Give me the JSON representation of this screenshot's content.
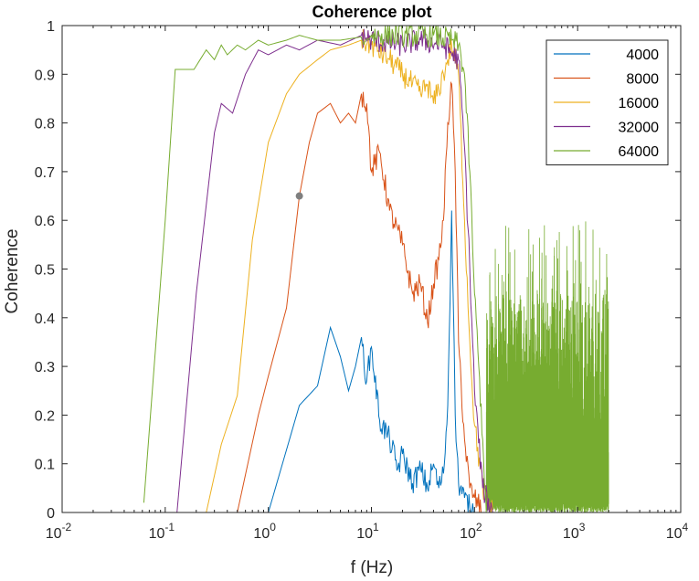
{
  "chart_data": {
    "type": "line",
    "title": "Coherence plot",
    "xlabel": "f (Hz)",
    "ylabel": "Coherence",
    "xscale": "log",
    "xlim": [
      0.01,
      10000
    ],
    "ylim": [
      0,
      1
    ],
    "grid": false,
    "legend_position": "top-right",
    "x_tick_labels": [
      {
        "base": "10",
        "exp": "-2"
      },
      {
        "base": "10",
        "exp": "-1"
      },
      {
        "base": "10",
        "exp": "0"
      },
      {
        "base": "10",
        "exp": "1"
      },
      {
        "base": "10",
        "exp": "2"
      },
      {
        "base": "10",
        "exp": "3"
      },
      {
        "base": "10",
        "exp": "4"
      }
    ],
    "y_tick_labels": [
      "0",
      "0.1",
      "0.2",
      "0.3",
      "0.4",
      "0.5",
      "0.6",
      "0.7",
      "0.8",
      "0.9",
      "1"
    ],
    "annotations": [
      {
        "x": 2.0,
        "y": 0.65,
        "marker": "dot",
        "color": "#7f7f7f"
      }
    ],
    "series": [
      {
        "name": "4000",
        "color": "#0072BD",
        "x": [
          1.0,
          2.0,
          3.0,
          4.0,
          5.0,
          6.0,
          7.0,
          8.0,
          9.0,
          10.0,
          12.0,
          15.0,
          18.0,
          20.0,
          25.0,
          30.0,
          35.0,
          40.0,
          45.0,
          50.0,
          55.0,
          60.0,
          62.0,
          65.0,
          70.0,
          80.0,
          90.0,
          100.0
        ],
        "y": [
          0.0,
          0.22,
          0.26,
          0.38,
          0.32,
          0.25,
          0.3,
          0.36,
          0.27,
          0.34,
          0.19,
          0.15,
          0.09,
          0.12,
          0.06,
          0.09,
          0.05,
          0.1,
          0.05,
          0.08,
          0.22,
          0.62,
          0.45,
          0.2,
          0.06,
          0.03,
          0.01,
          0.0
        ]
      },
      {
        "name": "8000",
        "color": "#D95319",
        "x": [
          0.5,
          0.8,
          1.0,
          1.5,
          2.0,
          2.5,
          3.0,
          4.0,
          5.0,
          6.0,
          7.0,
          8.0,
          9.0,
          10.0,
          12.0,
          15.0,
          20.0,
          25.0,
          30.0,
          35.0,
          40.0,
          45.0,
          50.0,
          55.0,
          60.0,
          65.0,
          70.0,
          80.0,
          90.0,
          100.0,
          120.0
        ],
        "y": [
          0.0,
          0.2,
          0.28,
          0.42,
          0.65,
          0.76,
          0.82,
          0.84,
          0.8,
          0.82,
          0.8,
          0.86,
          0.84,
          0.7,
          0.74,
          0.62,
          0.55,
          0.45,
          0.47,
          0.39,
          0.47,
          0.52,
          0.6,
          0.8,
          0.88,
          0.7,
          0.35,
          0.15,
          0.05,
          0.03,
          0.0
        ]
      },
      {
        "name": "16000",
        "color": "#EDB120",
        "x": [
          0.25,
          0.35,
          0.5,
          0.7,
          1.0,
          1.5,
          2.0,
          3.0,
          4.0,
          6.0,
          8.0,
          10.0,
          15.0,
          20.0,
          25.0,
          30.0,
          35.0,
          40.0,
          45.0,
          50.0,
          55.0,
          60.0,
          70.0,
          80.0,
          90.0,
          100.0,
          120.0,
          150.0
        ],
        "y": [
          0.0,
          0.14,
          0.24,
          0.56,
          0.76,
          0.86,
          0.9,
          0.93,
          0.95,
          0.96,
          0.97,
          0.96,
          0.93,
          0.9,
          0.88,
          0.86,
          0.88,
          0.84,
          0.87,
          0.9,
          0.93,
          0.96,
          0.9,
          0.6,
          0.35,
          0.18,
          0.05,
          0.0
        ]
      },
      {
        "name": "32000",
        "color": "#7E2F8E",
        "x": [
          0.13,
          0.2,
          0.3,
          0.35,
          0.45,
          0.6,
          0.8,
          1.0,
          1.5,
          2.0,
          3.0,
          5.0,
          8.0,
          10.0,
          20.0,
          30.0,
          50.0,
          70.0,
          80.0,
          90.0,
          100.0,
          120.0,
          150.0
        ],
        "y": [
          0.0,
          0.45,
          0.78,
          0.84,
          0.82,
          0.9,
          0.95,
          0.94,
          0.96,
          0.95,
          0.97,
          0.96,
          0.98,
          0.97,
          0.96,
          0.97,
          0.96,
          0.93,
          0.75,
          0.5,
          0.25,
          0.05,
          0.0
        ]
      },
      {
        "name": "64000",
        "color": "#77AC30",
        "x": [
          0.062,
          0.1,
          0.125,
          0.19,
          0.25,
          0.3,
          0.35,
          0.4,
          0.5,
          0.6,
          0.8,
          1.0,
          1.5,
          2.0,
          3.0,
          5.0,
          10.0,
          20.0,
          40.0,
          60.0,
          70.0,
          80.0,
          90.0,
          100.0,
          110.0,
          120.0,
          130.0
        ],
        "y": [
          0.02,
          0.6,
          0.91,
          0.91,
          0.95,
          0.93,
          0.96,
          0.94,
          0.96,
          0.95,
          0.97,
          0.96,
          0.97,
          0.98,
          0.97,
          0.97,
          0.98,
          0.98,
          0.98,
          0.97,
          0.96,
          0.9,
          0.7,
          0.45,
          0.3,
          0.15,
          0.0
        ]
      }
    ],
    "noise_band": {
      "series": "64000",
      "x_range": [
        130,
        2000
      ],
      "y_range": [
        0.0,
        0.45
      ],
      "peak_max": 0.6
    }
  }
}
